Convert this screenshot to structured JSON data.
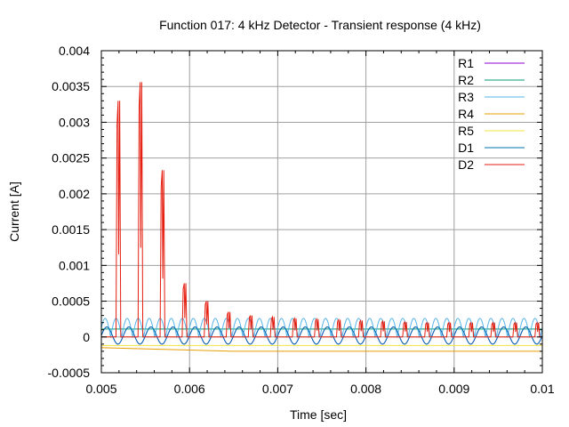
{
  "chart_data": {
    "type": "line",
    "title": "Function 017: 4 kHz Detector - Transient response (4 kHz)",
    "xlabel": "Time [sec]",
    "ylabel": "Current [A]",
    "xlim": [
      0.005,
      0.01
    ],
    "ylim": [
      -0.0005,
      0.004
    ],
    "xticks": [
      0.005,
      0.006,
      0.007,
      0.008,
      0.009,
      0.01
    ],
    "xtick_labels": [
      "0.005",
      "0.006",
      "0.007",
      "0.008",
      "0.009",
      "0.01"
    ],
    "yticks": [
      -0.0005,
      0,
      0.0005,
      0.001,
      0.0015,
      0.002,
      0.0025,
      0.003,
      0.0035,
      0.004
    ],
    "ytick_labels": [
      "-0.0005",
      "0",
      "0.0005",
      "0.001",
      "0.0015",
      "0.002",
      "0.0025",
      "0.003",
      "0.0035",
      "0.004"
    ],
    "grid": true,
    "legend_position": "top-right",
    "series": [
      {
        "name": "R1",
        "color": "#9400d3",
        "form": "sine",
        "freq": 4000,
        "offset": 2e-05,
        "amplitude": 0.00012,
        "phase": 0
      },
      {
        "name": "R2",
        "color": "#009e73",
        "form": "dc",
        "value": 0.00011
      },
      {
        "name": "R3",
        "color": "#56b4e9",
        "form": "abs_sine",
        "freq": 4000,
        "offset": 0.0,
        "amplitude": 0.00026,
        "phase": 0.5
      },
      {
        "name": "R4",
        "color": "#e69f00",
        "form": "dc_ramp",
        "start": -0.00015,
        "end": -0.0002
      },
      {
        "name": "R5",
        "color": "#f0e442",
        "form": "dc",
        "value": -0.00012
      },
      {
        "name": "D1",
        "color": "#0072b2",
        "form": "sine",
        "freq": 4000,
        "offset": 2e-05,
        "amplitude": 0.00012,
        "phase": 0
      },
      {
        "name": "D2",
        "color": "#e51e10",
        "form": "spikes",
        "base": 0.0,
        "peaks_t": [
          0.00519,
          0.00544,
          0.00569,
          0.00594,
          0.00619,
          0.00644,
          0.00669,
          0.00694,
          0.00719,
          0.00744,
          0.00769,
          0.00794,
          0.00819,
          0.00844,
          0.00869,
          0.00894,
          0.00919,
          0.00944,
          0.00969,
          0.00994
        ],
        "peaks_v": [
          0.0033,
          0.00356,
          0.00233,
          0.00075,
          0.0005,
          0.00035,
          0.0003,
          0.00028,
          0.00026,
          0.00025,
          0.00024,
          0.00023,
          0.00022,
          0.00021,
          0.0002,
          0.0002,
          0.0002,
          0.0002,
          0.0002,
          0.0002
        ]
      }
    ]
  }
}
